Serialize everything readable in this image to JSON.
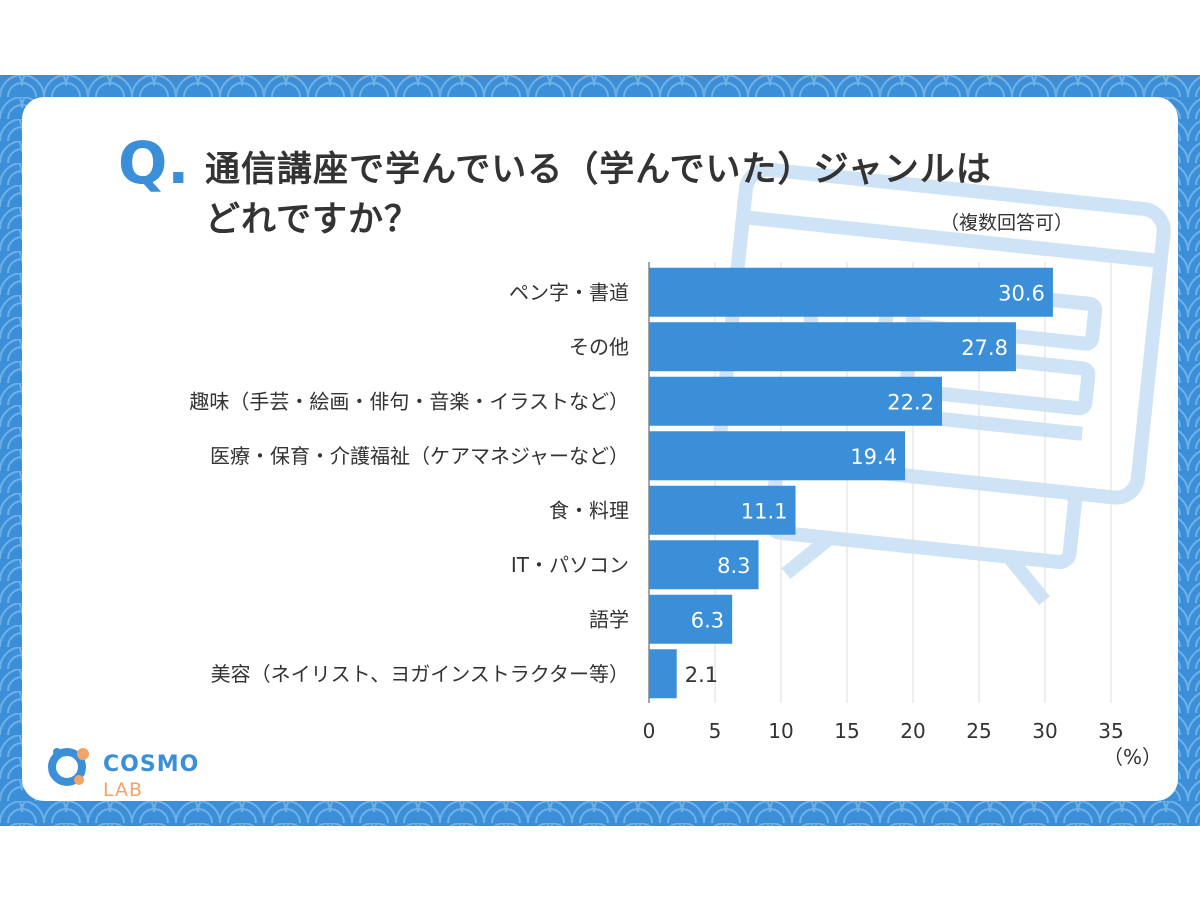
{
  "header": {
    "q_mark": "Q.",
    "title_line1": "通信講座で学んでいる（学んでいた）ジャンルは",
    "title_line2": "どれですか？",
    "note": "（複数回答可）"
  },
  "brand": {
    "name_main": "COSMO",
    "name_sub": "LAB"
  },
  "colors": {
    "bar": "#3b8fd8",
    "accent": "#f0a468",
    "frame": "#3a8fd8",
    "text": "#333333"
  },
  "chart_data": {
    "type": "bar",
    "orientation": "horizontal",
    "categories": [
      "ペン字・書道",
      "その他",
      "趣味（手芸・絵画・俳句・音楽・イラストなど）",
      "医療・保育・介護福祉（ケアマネジャーなど）",
      "食・料理",
      "IT・パソコン",
      "語学",
      "美容（ネイリスト、ヨガインストラクター等）"
    ],
    "values": [
      30.6,
      27.8,
      22.2,
      19.4,
      11.1,
      8.3,
      6.3,
      2.1
    ],
    "value_labels": [
      "30.6",
      "27.8",
      "22.2",
      "19.4",
      "11.1",
      "8.3",
      "6.3",
      "2.1"
    ],
    "xlim": [
      0,
      35
    ],
    "x_ticks": [
      0,
      5,
      10,
      15,
      20,
      25,
      30,
      35
    ],
    "x_tick_labels": [
      "0",
      "5",
      "10",
      "15",
      "20",
      "25",
      "30",
      "35"
    ],
    "unit_label": "（%）",
    "grid": true
  }
}
